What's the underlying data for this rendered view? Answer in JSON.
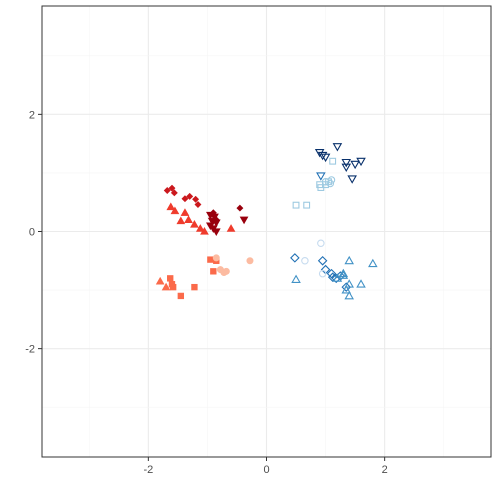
{
  "chart_data": {
    "type": "scatter",
    "title": "",
    "xlabel": "",
    "ylabel": "",
    "xlim": [
      -3.8,
      3.8
    ],
    "ylim": [
      -3.85,
      3.85
    ],
    "grid": true,
    "legend": "none",
    "x_ticks": [
      -2,
      0,
      2
    ],
    "x_tick_labels": [
      "-2",
      "0",
      "2"
    ],
    "y_ticks": [
      -2,
      0,
      2
    ],
    "y_tick_labels": [
      "-2",
      "0",
      "2"
    ],
    "colors": {
      "panel_border": "#333333",
      "grid_major": "#ebebeb",
      "grid_minor": "#f5f5f5",
      "dark_red": "#99000d",
      "red": "#cb181d",
      "orange_red": "#ef3b2c",
      "salmon": "#fb6a4a",
      "light_salmon": "#fc9272",
      "pale_red": "#fcbba1",
      "dark_blue": "#08306b",
      "blue": "#2171b5",
      "mid_blue": "#4292c6",
      "light_blue": "#6baed6",
      "pale_blue": "#9ecae1",
      "faint_blue": "#c6dbef"
    },
    "series": [
      {
        "color": "#cb181d",
        "shape": "diamond-filled",
        "x": [
          -1.68,
          -1.6,
          -1.56,
          -1.38,
          -1.3,
          -1.2,
          -1.16
        ],
        "y": [
          0.7,
          0.74,
          0.66,
          0.56,
          0.6,
          0.55,
          0.46
        ]
      },
      {
        "color": "#99000d",
        "shape": "diamond-filled",
        "x": [
          -0.9,
          -0.85,
          -0.45
        ],
        "y": [
          0.32,
          0.2,
          0.4
        ]
      },
      {
        "color": "#99000d",
        "shape": "triangle-down-filled",
        "x": [
          -0.95,
          -0.88,
          -0.92,
          -0.85,
          -0.95,
          -0.9,
          -0.85,
          -0.38
        ],
        "y": [
          0.28,
          0.25,
          0.18,
          0.15,
          0.1,
          0.05,
          0.0,
          0.2
        ]
      },
      {
        "color": "#ef3b2c",
        "shape": "triangle-filled",
        "x": [
          -1.62,
          -1.55,
          -1.45,
          -1.38,
          -1.32,
          -1.22,
          -1.12,
          -1.05,
          -0.6
        ],
        "y": [
          0.42,
          0.35,
          0.18,
          0.32,
          0.2,
          0.12,
          0.05,
          0.0,
          0.05
        ]
      },
      {
        "color": "#fb6a4a",
        "shape": "triangle-filled",
        "x": [
          -1.8,
          -1.7
        ],
        "y": [
          -0.85,
          -0.95
        ]
      },
      {
        "color": "#fb6a4a",
        "shape": "square-filled",
        "x": [
          -1.63,
          -1.6,
          -1.58,
          -1.45,
          -1.22,
          -0.95,
          -0.9,
          -0.85
        ],
        "y": [
          -0.8,
          -0.9,
          -0.95,
          -1.1,
          -0.95,
          -0.48,
          -0.68,
          -0.5
        ]
      },
      {
        "color": "#fcbba1",
        "shape": "circle-filled",
        "x": [
          -0.85,
          -0.78,
          -0.72,
          -0.68,
          -0.28
        ],
        "y": [
          -0.45,
          -0.65,
          -0.7,
          -0.68,
          -0.5
        ]
      },
      {
        "color": "#08306b",
        "shape": "triangle-down-open",
        "x": [
          0.9,
          0.95,
          1.0,
          1.2,
          1.35,
          1.35,
          1.5,
          1.6,
          1.45
        ],
        "y": [
          1.35,
          1.3,
          1.27,
          1.45,
          1.18,
          1.1,
          1.15,
          1.2,
          0.9
        ]
      },
      {
        "color": "#2171b5",
        "shape": "triangle-down-open",
        "x": [
          0.92
        ],
        "y": [
          0.95
        ]
      },
      {
        "color": "#2171b5",
        "shape": "diamond-open",
        "x": [
          0.48,
          0.95,
          1.0,
          1.1,
          1.12,
          1.18,
          1.25,
          1.35
        ],
        "y": [
          -0.45,
          -0.5,
          -0.65,
          -0.72,
          -0.78,
          -0.8,
          -0.76,
          -0.95
        ]
      },
      {
        "color": "#4292c6",
        "shape": "triangle-open",
        "x": [
          0.5,
          1.2,
          1.3,
          1.4,
          1.35,
          1.4,
          1.3,
          1.4,
          1.6,
          1.8
        ],
        "y": [
          -0.82,
          -0.8,
          -0.72,
          -0.5,
          -1.0,
          -1.1,
          -0.75,
          -0.9,
          -0.9,
          -0.55
        ]
      },
      {
        "color": "#9ecae1",
        "shape": "square-open",
        "x": [
          0.5,
          0.68,
          0.9,
          0.92,
          1.0,
          1.05,
          1.12
        ],
        "y": [
          0.45,
          0.45,
          0.8,
          0.75,
          0.8,
          0.85,
          1.2
        ]
      },
      {
        "color": "#9ecae1",
        "shape": "circle-open",
        "x": [
          1.0,
          1.08,
          1.1
        ],
        "y": [
          0.85,
          0.82,
          0.88
        ]
      },
      {
        "color": "#c6dbef",
        "shape": "circle-open",
        "x": [
          0.65,
          0.92,
          0.95
        ],
        "y": [
          -0.5,
          -0.2,
          -0.72
        ]
      }
    ]
  }
}
